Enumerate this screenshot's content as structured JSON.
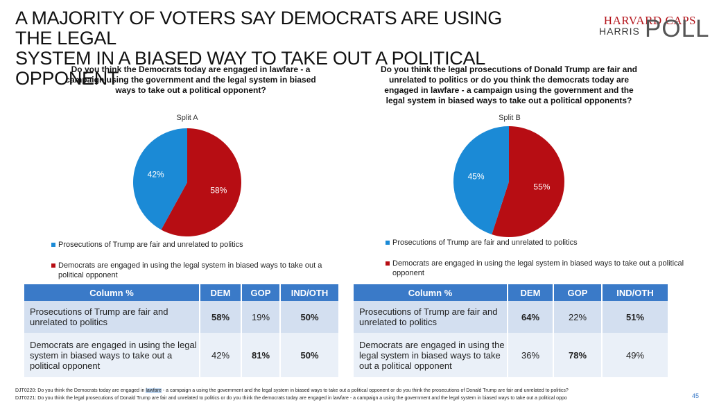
{
  "title_line1": "A MAJORITY OF VOTERS SAY DEMOCRATS ARE USING THE LEGAL",
  "title_line2": "SYSTEM IN A BIASED WAY TO TAKE OUT A POLITICAL OPPONENT",
  "logo": {
    "line1": "HARVARD CAPS",
    "line2": "HARRIS",
    "line3": "POLL"
  },
  "colors": {
    "blue": "#1b8ad6",
    "red": "#b70d13",
    "header": "#3a7ac8"
  },
  "chart_data": [
    {
      "type": "pie",
      "title": "Do you think the Democrats today are engaged in lawfare - a campaign using the government and the legal system in biased ways to take out a political opponent?",
      "subtitle": "Split A",
      "slices": [
        {
          "label": "Prosecutions of Trump are fair and unrelated to politics",
          "value": 42,
          "display": "42%",
          "color": "#1b8ad6"
        },
        {
          "label": "Democrats are engaged in using the legal system in biased ways to take out a political opponent",
          "value": 58,
          "display": "58%",
          "color": "#b70d13"
        }
      ],
      "legend_position": "bottom"
    },
    {
      "type": "pie",
      "title": "Do you think the legal prosecutions of Donald Trump are fair and unrelated to politics or do you think the democrats today are engaged in lawfare - a campaign using the government and the legal system in biased ways to take out a political opponents?",
      "subtitle": "Split B",
      "slices": [
        {
          "label": "Prosecutions of Trump are fair and unrelated to politics",
          "value": 45,
          "display": "45%",
          "color": "#1b8ad6"
        },
        {
          "label": "Democrats are engaged in using the legal system in biased ways to take out a political opponent",
          "value": 55,
          "display": "55%",
          "color": "#b70d13"
        }
      ],
      "legend_position": "bottom"
    },
    {
      "type": "table",
      "headers": [
        "Column %",
        "DEM",
        "GOP",
        "IND/OTH"
      ],
      "rows": [
        {
          "label": "Prosecutions of Trump are fair and unrelated to politics",
          "values": [
            "58%",
            "19%",
            "50%"
          ]
        },
        {
          "label": "Democrats are engaged in using the legal system in biased ways to take out a political opponent",
          "values": [
            "42%",
            "81%",
            "50%"
          ]
        }
      ]
    },
    {
      "type": "table",
      "headers": [
        "Column %",
        "DEM",
        "GOP",
        "IND/OTH"
      ],
      "rows": [
        {
          "label": "Prosecutions of Trump are fair and unrelated to politics",
          "values": [
            "64%",
            "22%",
            "51%"
          ]
        },
        {
          "label": "Democrats are engaged in using the legal system in biased ways to take out a political opponent",
          "values": [
            "36%",
            "78%",
            "49%"
          ]
        }
      ]
    }
  ],
  "footnotes": {
    "line1_pre": "DJT0220: Do you think the Democrats today are engaged in ",
    "line1_hl": "lawfare",
    "line1_post": " - a campaign a using the government and the legal system in biased ways to take out a political opponent or do you think the prosecutions of Donald Trump are fair and unrelated to politics?",
    "line2": "DJT0221: Do you think the legal prosecutions of Donald Trump are fair and unrelated to politics or do you think the democrats today are engaged in lawfare - a campaign a using the government and the legal system in biased ways to take out a political oppo"
  },
  "page_number": "45"
}
